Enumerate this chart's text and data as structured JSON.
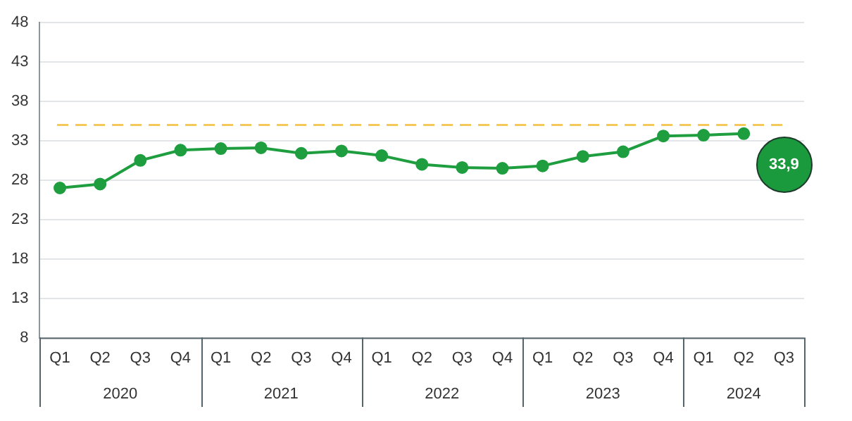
{
  "chart_data": {
    "type": "line",
    "categories": [
      "Q1",
      "Q2",
      "Q3",
      "Q4",
      "Q1",
      "Q2",
      "Q3",
      "Q4",
      "Q1",
      "Q2",
      "Q3",
      "Q4",
      "Q1",
      "Q2",
      "Q3",
      "Q4",
      "Q1",
      "Q2",
      "Q3"
    ],
    "series": [
      {
        "color": "#1f9e3f",
        "values": [
          27.0,
          27.5,
          30.5,
          31.8,
          32.0,
          32.1,
          31.4,
          31.7,
          31.1,
          30.0,
          29.6,
          29.5,
          29.8,
          31.0,
          31.6,
          33.6,
          33.7,
          33.9,
          null
        ]
      }
    ],
    "ylim": [
      8,
      48
    ],
    "yticks": [
      8,
      13,
      18,
      23,
      28,
      33,
      38,
      43,
      48
    ],
    "ref_lines": [
      {
        "axis": "y",
        "value": 35,
        "color": "#f5c85a",
        "line_style": "dashed"
      }
    ],
    "annotations": [
      "2020",
      "2021",
      "2022",
      "2023",
      "2024",
      "33,9"
    ],
    "grid": "y",
    "legend": false,
    "marker": "circle",
    "line_style": "solid"
  }
}
